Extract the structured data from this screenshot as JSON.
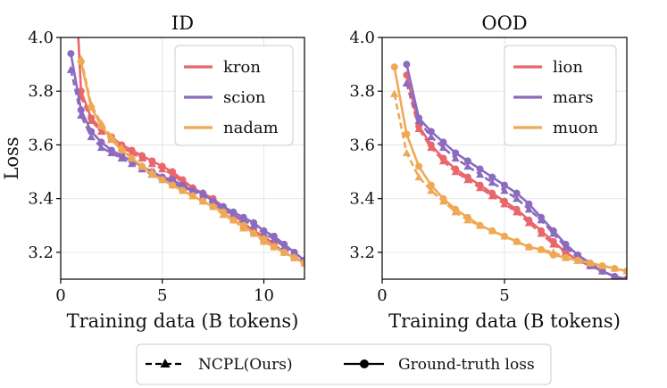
{
  "chart_data": [
    {
      "type": "line",
      "title": "ID",
      "xlabel": "Training data (B tokens)",
      "ylabel": "Loss",
      "xlim": [
        0,
        12
      ],
      "ylim": [
        3.1,
        4.0
      ],
      "xticks": [
        "0",
        "5",
        "10"
      ],
      "yticks": [
        "3.2",
        "3.4",
        "3.6",
        "3.8",
        "4.0"
      ],
      "grid": true,
      "legend": {
        "position": "top-right",
        "entries": [
          "kron",
          "scion",
          "nadam"
        ]
      },
      "series": [
        {
          "name": "kron",
          "color": "#e8676c",
          "ground_truth": {
            "x": [
              0.5,
              1.0,
              1.5,
              2.0,
              2.5,
              3.0,
              3.5,
              4.0,
              4.5,
              5.0,
              5.5,
              6.0,
              6.5,
              7.0,
              7.5,
              8.0,
              8.5,
              9.0,
              9.5,
              10.0,
              10.5,
              11.0,
              11.5,
              12.0
            ],
            "y": [
              4.55,
              3.8,
              3.7,
              3.66,
              3.63,
              3.6,
              3.58,
              3.56,
              3.54,
              3.52,
              3.5,
              3.47,
              3.44,
              3.42,
              3.4,
              3.37,
              3.34,
              3.31,
              3.28,
              3.26,
              3.23,
              3.2,
              3.18,
              3.16
            ]
          },
          "ncpl": {
            "x": [
              1.0,
              1.5,
              2.0,
              2.5,
              3.0,
              3.5,
              4.0,
              4.5,
              5.0,
              5.5,
              6.0,
              6.5,
              7.0,
              7.5,
              8.0,
              8.5,
              9.0,
              9.5,
              10.0,
              10.5,
              11.0,
              11.5,
              12.0
            ],
            "y": [
              3.78,
              3.69,
              3.65,
              3.62,
              3.59,
              3.57,
              3.55,
              3.53,
              3.51,
              3.49,
              3.46,
              3.44,
              3.42,
              3.39,
              3.36,
              3.33,
              3.3,
              3.28,
              3.25,
              3.22,
              3.2,
              3.18,
              3.16
            ]
          }
        },
        {
          "name": "scion",
          "color": "#8b6bbf",
          "ground_truth": {
            "x": [
              0.5,
              1.0,
              1.5,
              2.0,
              2.5,
              3.0,
              3.5,
              4.0,
              4.5,
              5.0,
              5.5,
              6.0,
              6.5,
              7.0,
              7.5,
              8.0,
              8.5,
              9.0,
              9.5,
              10.0,
              10.5,
              11.0,
              11.5,
              12.0
            ],
            "y": [
              3.94,
              3.73,
              3.65,
              3.61,
              3.58,
              3.56,
              3.54,
              3.52,
              3.5,
              3.48,
              3.47,
              3.45,
              3.43,
              3.42,
              3.39,
              3.37,
              3.35,
              3.33,
              3.31,
              3.28,
              3.26,
              3.23,
              3.2,
              3.17
            ]
          },
          "ncpl": {
            "x": [
              0.5,
              1.0,
              1.5,
              2.0,
              2.5,
              3.0,
              3.5,
              4.0,
              4.5,
              5.0,
              5.5,
              6.0,
              6.5,
              7.0,
              7.5,
              8.0,
              8.5,
              9.0,
              9.5,
              10.0,
              10.5,
              11.0,
              11.5,
              12.0
            ],
            "y": [
              3.88,
              3.71,
              3.63,
              3.59,
              3.57,
              3.55,
              3.53,
              3.51,
              3.49,
              3.48,
              3.46,
              3.44,
              3.43,
              3.41,
              3.38,
              3.36,
              3.34,
              3.32,
              3.3,
              3.27,
              3.25,
              3.22,
              3.19,
              3.17
            ]
          }
        },
        {
          "name": "nadam",
          "color": "#efa955",
          "ground_truth": {
            "x": [
              1.0,
              1.5,
              2.0,
              2.5,
              3.0,
              3.5,
              4.0,
              4.5,
              5.0,
              5.5,
              6.0,
              6.5,
              7.0,
              7.5,
              8.0,
              8.5,
              9.0,
              9.5,
              10.0,
              10.5,
              11.0,
              11.5,
              12.0
            ],
            "y": [
              3.91,
              3.74,
              3.67,
              3.62,
              3.58,
              3.55,
              3.52,
              3.49,
              3.47,
              3.45,
              3.43,
              3.41,
              3.39,
              3.37,
              3.35,
              3.32,
              3.3,
              3.27,
              3.25,
              3.22,
              3.2,
              3.18,
              3.16
            ]
          },
          "ncpl": {
            "x": [
              1.0,
              1.5,
              2.0,
              2.5,
              3.0,
              3.5,
              4.0,
              4.5,
              5.0,
              5.5,
              6.0,
              6.5,
              7.0,
              7.5,
              8.0,
              8.5,
              9.0,
              9.5,
              10.0,
              10.5,
              11.0,
              11.5,
              12.0
            ],
            "y": [
              3.92,
              3.75,
              3.68,
              3.63,
              3.59,
              3.55,
              3.52,
              3.5,
              3.47,
              3.45,
              3.43,
              3.41,
              3.39,
              3.37,
              3.34,
              3.32,
              3.29,
              3.27,
              3.24,
              3.22,
              3.2,
              3.18,
              3.16
            ]
          }
        }
      ]
    },
    {
      "type": "line",
      "title": "OOD",
      "xlabel": "Training data (B tokens)",
      "ylabel": "",
      "xlim": [
        0,
        10
      ],
      "ylim": [
        3.1,
        4.0
      ],
      "xticks": [
        "0",
        "5"
      ],
      "yticks": [
        "3.2",
        "3.4",
        "3.6",
        "3.8",
        "4.0"
      ],
      "grid": true,
      "legend": {
        "position": "top-right",
        "entries": [
          "lion",
          "mars",
          "muon"
        ]
      },
      "series": [
        {
          "name": "lion",
          "color": "#e8676c",
          "ground_truth": {
            "x": [
              1.0,
              1.5,
              2.0,
              2.5,
              3.0,
              3.5,
              4.0,
              4.5,
              5.0,
              5.5,
              6.0,
              6.5,
              7.0,
              7.5,
              8.0,
              8.5,
              9.0,
              9.5,
              10.0
            ],
            "y": [
              3.86,
              3.67,
              3.6,
              3.55,
              3.51,
              3.48,
              3.45,
              3.42,
              3.39,
              3.36,
              3.32,
              3.28,
              3.24,
              3.2,
              3.17,
              3.15,
              3.13,
              3.11,
              3.1
            ]
          },
          "ncpl": {
            "x": [
              1.0,
              1.5,
              2.0,
              2.5,
              3.0,
              3.5,
              4.0,
              4.5,
              5.0,
              5.5,
              6.0,
              6.5,
              7.0,
              7.5,
              8.0,
              8.5,
              9.0,
              9.5,
              10.0
            ],
            "y": [
              3.83,
              3.66,
              3.59,
              3.54,
              3.5,
              3.47,
              3.44,
              3.41,
              3.38,
              3.35,
              3.31,
              3.27,
              3.23,
              3.2,
              3.17,
              3.15,
              3.13,
              3.11,
              3.1
            ]
          }
        },
        {
          "name": "mars",
          "color": "#8b6bbf",
          "ground_truth": {
            "x": [
              1.0,
              1.5,
              2.0,
              2.5,
              3.0,
              3.5,
              4.0,
              4.5,
              5.0,
              5.5,
              6.0,
              6.5,
              7.0,
              7.5,
              8.0,
              8.5,
              9.0,
              9.5,
              10.0
            ],
            "y": [
              3.9,
              3.7,
              3.65,
              3.61,
              3.57,
              3.54,
              3.51,
              3.48,
              3.45,
              3.42,
              3.38,
              3.33,
              3.28,
              3.23,
              3.19,
              3.16,
              3.13,
              3.11,
              3.1
            ]
          },
          "ncpl": {
            "x": [
              1.0,
              1.5,
              2.0,
              2.5,
              3.0,
              3.5,
              4.0,
              4.5,
              5.0,
              5.5,
              6.0,
              6.5,
              7.0,
              7.5,
              8.0,
              8.5,
              9.0,
              9.5,
              10.0
            ],
            "y": [
              3.83,
              3.69,
              3.63,
              3.59,
              3.55,
              3.52,
              3.49,
              3.46,
              3.43,
              3.4,
              3.36,
              3.32,
              3.27,
              3.22,
              3.18,
              3.15,
              3.13,
              3.11,
              3.1
            ]
          }
        },
        {
          "name": "muon",
          "color": "#efa955",
          "ground_truth": {
            "x": [
              0.5,
              1.0,
              1.5,
              2.0,
              2.5,
              3.0,
              3.5,
              4.0,
              4.5,
              5.0,
              5.5,
              6.0,
              6.5,
              7.0,
              7.5,
              8.0,
              8.5,
              9.0,
              9.5,
              10.0
            ],
            "y": [
              3.89,
              3.64,
              3.52,
              3.45,
              3.4,
              3.36,
              3.33,
              3.3,
              3.28,
              3.26,
              3.24,
              3.22,
              3.21,
              3.19,
              3.18,
              3.17,
              3.16,
              3.15,
              3.14,
              3.13
            ]
          },
          "ncpl": {
            "x": [
              0.5,
              1.0,
              1.5,
              2.0,
              2.5,
              3.0,
              3.5,
              4.0,
              4.5,
              5.0,
              5.5,
              6.0,
              6.5,
              7.0,
              7.5,
              8.0,
              8.5,
              9.0,
              9.5,
              10.0
            ],
            "y": [
              3.79,
              3.57,
              3.48,
              3.43,
              3.39,
              3.35,
              3.32,
              3.3,
              3.28,
              3.26,
              3.24,
              3.22,
              3.21,
              3.2,
              3.18,
              3.17,
              3.16,
              3.15,
              3.14,
              3.13
            ]
          }
        }
      ]
    }
  ],
  "legend_bottom": {
    "ncpl_label": "NCPL(Ours)",
    "ground_truth_label": "Ground-truth loss"
  },
  "colors": {
    "gridline": "#e6e6e6",
    "axis": "#000000",
    "legend_border": "#cccccc"
  }
}
